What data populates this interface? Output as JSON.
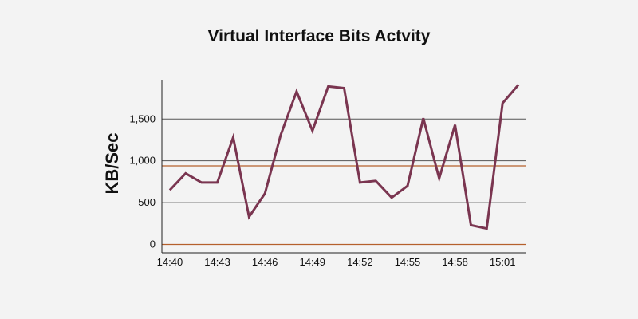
{
  "colors": {
    "line": "#7a3550",
    "grid": "#555555",
    "reference": "#b5602c",
    "axis": "#222222",
    "background": "#f3f3f3"
  },
  "chart_data": {
    "type": "line",
    "title": "Virtual Interface Bits Actvity",
    "xlabel": "",
    "ylabel": "KB/Sec",
    "x_tick_labels": [
      "14:40",
      "14:43",
      "14:46",
      "14:49",
      "14:52",
      "14:55",
      "14:58",
      "15:01"
    ],
    "y_tick_labels": [
      "0",
      "500",
      "1,000",
      "1,500"
    ],
    "y_ticks": [
      0,
      500,
      1000,
      1500
    ],
    "ylim": [
      -100,
      1970
    ],
    "xlim": [
      -0.5,
      22.5
    ],
    "grid": "horizontal",
    "reference_lines": [
      0,
      940
    ],
    "series": [
      {
        "x": [
          0,
          1,
          2,
          3,
          4,
          5,
          6,
          7,
          8,
          9,
          10,
          11,
          12,
          13,
          14,
          15,
          16,
          17,
          18,
          19,
          20,
          21,
          22
        ],
        "values": [
          650,
          850,
          740,
          740,
          1280,
          330,
          610,
          1310,
          1830,
          1360,
          1890,
          1870,
          740,
          760,
          560,
          700,
          1510,
          790,
          1430,
          230,
          190,
          1690,
          1910
        ]
      }
    ]
  }
}
